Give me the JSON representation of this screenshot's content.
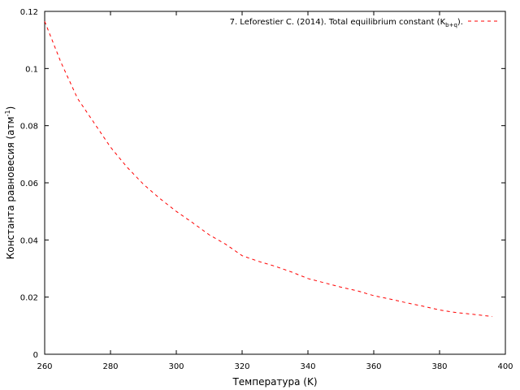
{
  "chart_data": {
    "type": "line",
    "title": "",
    "xlabel": "Температура (K)",
    "ylabel_main": "Константа равновесия (атм",
    "ylabel_sup": "-1",
    "ylabel_end": ")",
    "xlim": [
      260,
      400
    ],
    "ylim": [
      0,
      0.12
    ],
    "xticks": [
      260,
      280,
      300,
      320,
      340,
      360,
      380,
      400
    ],
    "yticks": [
      0,
      0.02,
      0.04,
      0.06,
      0.08,
      0.1,
      0.12
    ],
    "ytick_labels": [
      "0",
      "0.02",
      "0.04",
      "0.06",
      "0.08",
      "0.1",
      "0.12"
    ],
    "grid": false,
    "legend_position": "top-right",
    "series": [
      {
        "name_main": "7. Leforestier C. (2014). Total equilibrium constant (K",
        "name_sub": "b+q",
        "name_end": ").",
        "color": "#ff0000",
        "dash": "dashed",
        "x": [
          260,
          265,
          270,
          275,
          280,
          285,
          290,
          295,
          300,
          305,
          310,
          315,
          320,
          325,
          330,
          335,
          340,
          345,
          350,
          355,
          360,
          365,
          370,
          375,
          380,
          385,
          390,
          396
        ],
        "y": [
          0.1165,
          0.102,
          0.0895,
          0.081,
          0.0725,
          0.0655,
          0.0595,
          0.0545,
          0.05,
          0.046,
          0.0418,
          0.0385,
          0.0345,
          0.0325,
          0.0308,
          0.0288,
          0.0265,
          0.025,
          0.0235,
          0.0222,
          0.0205,
          0.0193,
          0.018,
          0.0168,
          0.0155,
          0.0146,
          0.014,
          0.0132
        ]
      }
    ]
  }
}
